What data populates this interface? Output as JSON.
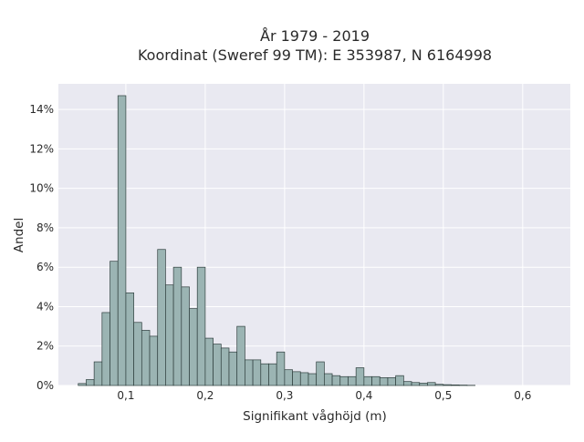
{
  "chart_data": {
    "type": "bar",
    "title_lines": [
      "År 1979 - 2019",
      "Koordinat (Sweref 99 TM): E 353987, N 6164998"
    ],
    "xlabel": "Signifikant våghöjd (m)",
    "ylabel": "Andel",
    "xlim": [
      0.015,
      0.66
    ],
    "ylim": [
      0,
      0.153
    ],
    "grid": true,
    "x_ticks": [
      {
        "value": 0.1,
        "label": "0,1"
      },
      {
        "value": 0.2,
        "label": "0,2"
      },
      {
        "value": 0.3,
        "label": "0,3"
      },
      {
        "value": 0.4,
        "label": "0,4"
      },
      {
        "value": 0.5,
        "label": "0,5"
      },
      {
        "value": 0.6,
        "label": "0,6"
      }
    ],
    "y_ticks": [
      {
        "value": 0,
        "label": "0%"
      },
      {
        "value": 0.02,
        "label": "2%"
      },
      {
        "value": 0.04,
        "label": "4%"
      },
      {
        "value": 0.06,
        "label": "6%"
      },
      {
        "value": 0.08,
        "label": "8%"
      },
      {
        "value": 0.1,
        "label": "10%"
      },
      {
        "value": 0.12,
        "label": "12%"
      },
      {
        "value": 0.14,
        "label": "14%"
      }
    ],
    "bin_width": 0.01,
    "bin_start": 0.04,
    "values": [
      0.001,
      0.003,
      0.012,
      0.037,
      0.063,
      0.147,
      0.047,
      0.032,
      0.028,
      0.025,
      0.069,
      0.051,
      0.06,
      0.05,
      0.039,
      0.06,
      0.024,
      0.021,
      0.019,
      0.017,
      0.03,
      0.013,
      0.013,
      0.011,
      0.011,
      0.017,
      0.008,
      0.007,
      0.0065,
      0.006,
      0.012,
      0.006,
      0.005,
      0.0045,
      0.0045,
      0.009,
      0.0045,
      0.0045,
      0.004,
      0.004,
      0.005,
      0.002,
      0.0015,
      0.0012,
      0.0015,
      0.0006,
      0.0004,
      0.0003,
      0.0002,
      0.0001
    ],
    "colors": {
      "bar_fill": "#9bb4b3",
      "bar_stroke": "#2f3f3e",
      "plot_bg": "#e9e9f1",
      "grid": "#ffffff"
    }
  }
}
